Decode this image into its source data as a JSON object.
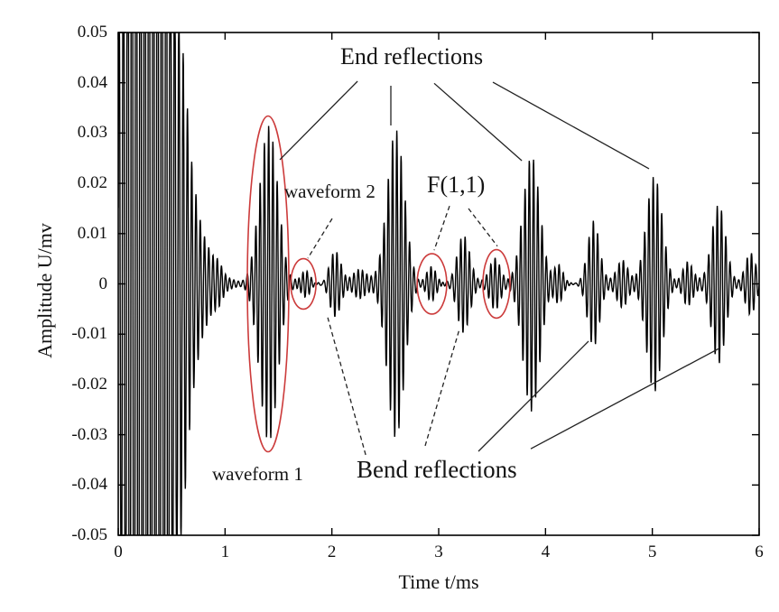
{
  "figure": {
    "xlabel": "Time t/ms",
    "ylabel": "Amplitude U/mv"
  },
  "annotations": {
    "end_reflections": {
      "label": "End reflections"
    },
    "bend_reflections": {
      "label": "Bend reflections"
    },
    "f11": {
      "label": "F(1,1)"
    },
    "waveform1": {
      "label": "waveform 1"
    },
    "waveform2": {
      "label": "waveform 2"
    }
  },
  "chart_data": {
    "type": "line",
    "title": "",
    "xlabel": "Time t/ms",
    "ylabel": "Amplitude U/mv",
    "xlim": [
      0,
      6
    ],
    "ylim": [
      -0.05,
      0.05
    ],
    "grid": false,
    "legend": "none",
    "xticks": [
      {
        "v": 0,
        "label": "0"
      },
      {
        "v": 1,
        "label": "1"
      },
      {
        "v": 2,
        "label": "2"
      },
      {
        "v": 3,
        "label": "3"
      },
      {
        "v": 4,
        "label": "4"
      },
      {
        "v": 5,
        "label": "5"
      },
      {
        "v": 6,
        "label": "6"
      }
    ],
    "yticks": [
      {
        "v": 0.05,
        "label": "0.05"
      },
      {
        "v": 0.04,
        "label": "0.04"
      },
      {
        "v": 0.03,
        "label": "0.03"
      },
      {
        "v": 0.02,
        "label": "0.02"
      },
      {
        "v": 0.01,
        "label": "0.01"
      },
      {
        "v": 0,
        "label": "0"
      },
      {
        "v": -0.01,
        "label": "-0.01"
      },
      {
        "v": -0.02,
        "label": "-0.02"
      },
      {
        "v": -0.03,
        "label": "-0.03"
      },
      {
        "v": -0.04,
        "label": "-0.04"
      },
      {
        "v": -0.05,
        "label": "-0.05"
      }
    ],
    "signal_model": {
      "carrier_freq_per_ms": 25,
      "carrier_phase": 0.3,
      "sample_step_ms": 0.002,
      "noise_amplitude": 0.0012,
      "clip": 0.05,
      "packets": [
        {
          "t": 0.28,
          "amp": 0.5,
          "sigma": 0.13,
          "note": "excitation burst (clipped)"
        },
        {
          "t": 0.62,
          "amp": 0.025,
          "sigma": 0.05
        },
        {
          "t": 0.72,
          "amp": 0.014,
          "sigma": 0.05
        },
        {
          "t": 0.82,
          "amp": 0.007,
          "sigma": 0.05
        },
        {
          "t": 0.93,
          "amp": 0.0045,
          "sigma": 0.05
        },
        {
          "t": 1.41,
          "amp": 0.031,
          "sigma": 0.085,
          "note": "waveform 1 / end reflection"
        },
        {
          "t": 1.75,
          "amp": 0.0033,
          "sigma": 0.05,
          "note": "waveform 2"
        },
        {
          "t": 2.03,
          "amp": 0.0067,
          "sigma": 0.055,
          "note": "bend reflection"
        },
        {
          "t": 2.25,
          "amp": 0.002,
          "sigma": 0.06
        },
        {
          "t": 2.6,
          "amp": 0.0305,
          "sigma": 0.08,
          "note": "end reflection"
        },
        {
          "t": 2.93,
          "amp": 0.0042,
          "sigma": 0.05,
          "note": "F(1,1)"
        },
        {
          "t": 3.23,
          "amp": 0.0095,
          "sigma": 0.06,
          "note": "bend reflection"
        },
        {
          "t": 3.53,
          "amp": 0.0046,
          "sigma": 0.05,
          "note": "F(1,1)"
        },
        {
          "t": 3.87,
          "amp": 0.026,
          "sigma": 0.08,
          "note": "end reflection"
        },
        {
          "t": 4.12,
          "amp": 0.0045,
          "sigma": 0.045
        },
        {
          "t": 4.45,
          "amp": 0.012,
          "sigma": 0.055,
          "note": "bend reflection"
        },
        {
          "t": 4.72,
          "amp": 0.0038,
          "sigma": 0.05
        },
        {
          "t": 5.02,
          "amp": 0.022,
          "sigma": 0.075,
          "note": "end reflection"
        },
        {
          "t": 5.33,
          "amp": 0.0048,
          "sigma": 0.05
        },
        {
          "t": 5.62,
          "amp": 0.015,
          "sigma": 0.065,
          "note": "bend reflection"
        },
        {
          "t": 5.92,
          "amp": 0.006,
          "sigma": 0.05
        }
      ]
    },
    "highlight_ellipses": [
      {
        "t": 1.403,
        "y": 0,
        "rx_ms": 0.194,
        "ry_amp": 0.0334,
        "note": "waveform 1"
      },
      {
        "t": 1.733,
        "y": 0,
        "rx_ms": 0.118,
        "ry_amp": 0.005,
        "note": "waveform 2"
      },
      {
        "t": 2.937,
        "y": 0,
        "rx_ms": 0.139,
        "ry_amp": 0.006,
        "note": "F(1,1)"
      },
      {
        "t": 3.541,
        "y": 0,
        "rx_ms": 0.127,
        "ry_amp": 0.0068,
        "note": "F(1,1)"
      }
    ],
    "leader_lines": [
      {
        "x1": 2.24,
        "y1": 0.0403,
        "x2": 1.513,
        "y2": 0.0247,
        "dashed": false,
        "from": "end_reflections"
      },
      {
        "x1": 2.552,
        "y1": 0.0394,
        "x2": 2.552,
        "y2": 0.0315,
        "dashed": false,
        "from": "end_reflections"
      },
      {
        "x1": 2.958,
        "y1": 0.0399,
        "x2": 3.778,
        "y2": 0.0245,
        "dashed": false,
        "from": "end_reflections"
      },
      {
        "x1": 3.507,
        "y1": 0.0401,
        "x2": 4.969,
        "y2": 0.0229,
        "dashed": false,
        "from": "end_reflections"
      },
      {
        "x1": 2.003,
        "y1": 0.013,
        "x2": 1.775,
        "y2": 0.0051,
        "dashed": true,
        "from": "waveform2"
      },
      {
        "x1": 3.101,
        "y1": 0.0155,
        "x2": 2.958,
        "y2": 0.0067,
        "dashed": true,
        "from": "f11"
      },
      {
        "x1": 3.279,
        "y1": 0.015,
        "x2": 3.549,
        "y2": 0.0075,
        "dashed": true,
        "from": "f11"
      },
      {
        "x1": 2.316,
        "y1": -0.034,
        "x2": 1.961,
        "y2": -0.0067,
        "dashed": true,
        "from": "bend_reflections"
      },
      {
        "x1": 2.873,
        "y1": -0.0322,
        "x2": 3.195,
        "y2": -0.0089,
        "dashed": true,
        "from": "bend_reflections"
      },
      {
        "x1": 3.372,
        "y1": -0.0333,
        "x2": 4.403,
        "y2": -0.0114,
        "dashed": false,
        "from": "bend_reflections"
      },
      {
        "x1": 3.862,
        "y1": -0.0328,
        "x2": 5.628,
        "y2": -0.0128,
        "dashed": false,
        "from": "bend_reflections"
      }
    ],
    "colors": {
      "signal": "#000000",
      "axis": "#000000",
      "ellipse": "#cc3b3b",
      "leader": "#222222",
      "text": "#111111",
      "background": "#ffffff"
    }
  }
}
